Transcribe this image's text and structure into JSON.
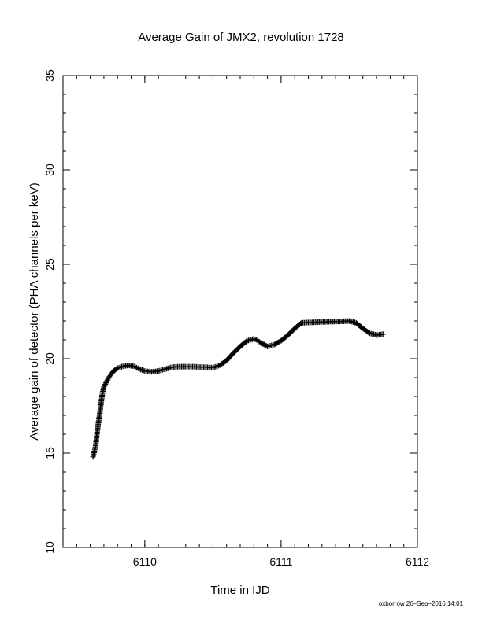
{
  "chart_data": {
    "type": "scatter",
    "title": "Average Gain of JMX2, revolution 1728",
    "xlabel": "Time in IJD",
    "ylabel": "Average gain of detector (PHA channels per keV)",
    "xlim": [
      6109.4,
      6112
    ],
    "ylim": [
      10,
      35
    ],
    "xticks": [
      6110,
      6111,
      6112
    ],
    "yticks": [
      10,
      15,
      20,
      25,
      30,
      35
    ],
    "marker": "plus",
    "grid": false,
    "series": [
      {
        "color": "#000000",
        "x": [
          6109.62,
          6109.63,
          6109.64,
          6109.65,
          6109.66,
          6109.67,
          6109.68,
          6109.69,
          6109.7,
          6109.72,
          6109.74,
          6109.76,
          6109.78,
          6109.8,
          6109.84,
          6109.88,
          6109.92,
          6109.96,
          6110.0,
          6110.05,
          6110.1,
          6110.15,
          6110.2,
          6110.25,
          6110.3,
          6110.35,
          6110.4,
          6110.45,
          6110.5,
          6110.55,
          6110.6,
          6110.65,
          6110.7,
          6110.75,
          6110.8,
          6110.82,
          6110.85,
          6110.9,
          6110.95,
          6111.0,
          6111.05,
          6111.1,
          6111.15,
          6111.2,
          6111.25,
          6111.3,
          6111.35,
          6111.4,
          6111.45,
          6111.5,
          6111.55,
          6111.6,
          6111.65,
          6111.7,
          6111.72,
          6111.75
        ],
        "y": [
          14.8,
          15.1,
          15.4,
          16.1,
          16.6,
          17.1,
          17.7,
          18.2,
          18.5,
          18.8,
          19.05,
          19.25,
          19.4,
          19.5,
          19.6,
          19.65,
          19.6,
          19.45,
          19.35,
          19.3,
          19.35,
          19.45,
          19.55,
          19.58,
          19.58,
          19.58,
          19.56,
          19.55,
          19.52,
          19.65,
          19.9,
          20.3,
          20.65,
          20.95,
          21.05,
          21.0,
          20.85,
          20.65,
          20.75,
          20.95,
          21.25,
          21.6,
          21.9,
          21.92,
          21.93,
          21.95,
          21.96,
          21.97,
          21.98,
          22.0,
          21.9,
          21.6,
          21.35,
          21.25,
          21.27,
          21.3
        ]
      }
    ]
  },
  "footer": {
    "stamp": "oxborrow 26–Sep–2016 14:01"
  }
}
